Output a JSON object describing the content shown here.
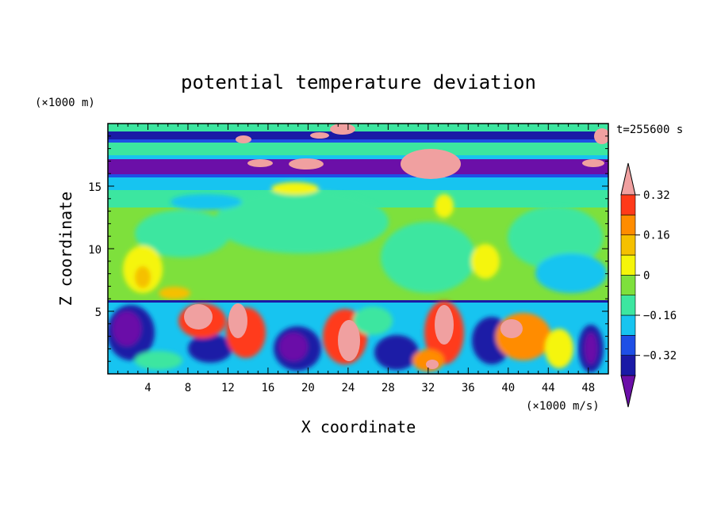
{
  "chart_data": {
    "type": "heatmap",
    "title": "potential temperature deviation",
    "xlabel": "X coordinate",
    "ylabel": "Z coordinate",
    "x_unit_label": "(×1000 m/s)",
    "y_unit_label": "(×1000 m)",
    "time_label": "t=255600 s",
    "xlim": [
      0,
      50
    ],
    "ylim": [
      0,
      20
    ],
    "x_ticks": [
      4,
      8,
      12,
      16,
      20,
      24,
      28,
      32,
      36,
      40,
      44,
      48
    ],
    "x_tick_labels": [
      "4",
      "8",
      "12",
      "16",
      "20",
      "24",
      "28",
      "32",
      "36",
      "40",
      "44",
      "48"
    ],
    "y_ticks": [
      5,
      10,
      15
    ],
    "y_tick_labels": [
      "5",
      "10",
      "15"
    ],
    "colorbar": {
      "levels": [
        -0.4,
        -0.32,
        -0.24,
        -0.16,
        -0.08,
        0,
        0.08,
        0.16,
        0.24,
        0.32,
        0.4
      ],
      "labeled_levels": [
        0.32,
        0.16,
        0,
        -0.16,
        -0.32
      ],
      "labels": [
        "0.32",
        "0.16",
        "0",
        "−0.16",
        "−0.32"
      ],
      "colors": [
        "#6b0fa8",
        "#1a1aa6",
        "#1e4fe6",
        "#17c4f0",
        "#3ce6a0",
        "#7ee03c",
        "#f5f50a",
        "#f5c000",
        "#ff8c00",
        "#ff3a1a",
        "#f0a0a0"
      ],
      "extend": "both"
    },
    "regions": {
      "stratosphere_bands": "alternating dark blue / purple bands near z=16-19, pink patches above",
      "upper_troposphere": "mostly green (≈0) with yellow patches",
      "boundary_layer": "z<6: turbulent mix of purple, blue, red, pink eddies"
    }
  }
}
